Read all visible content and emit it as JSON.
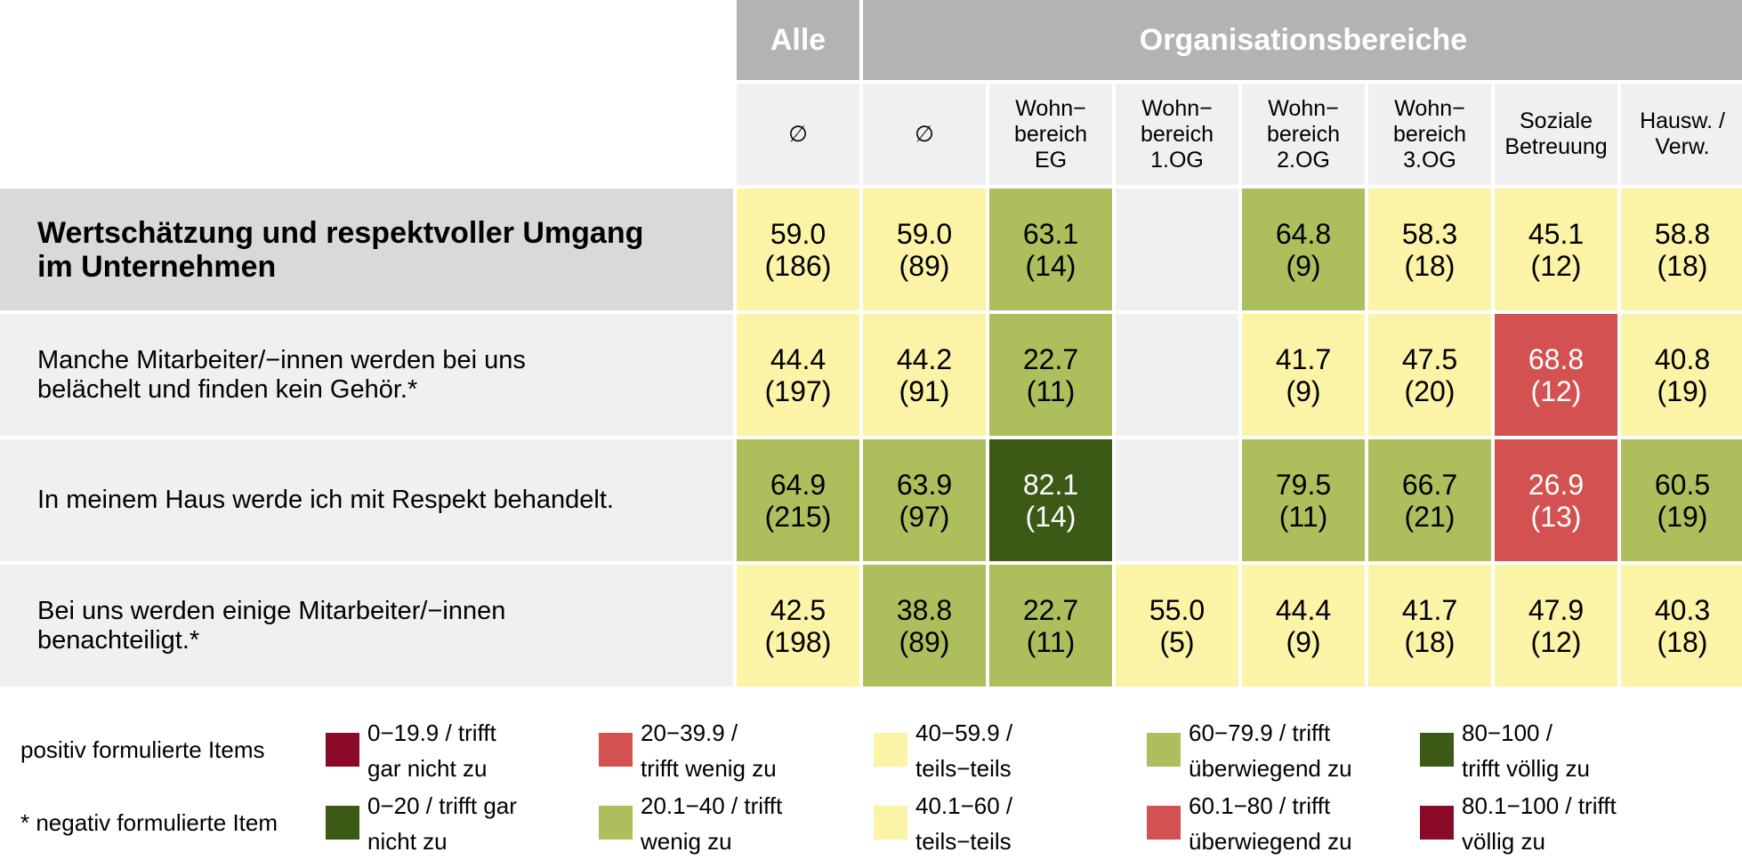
{
  "chart_data": {
    "type": "table",
    "header_groups": [
      {
        "label": "Alle",
        "span": 1
      },
      {
        "label": "Organisationsbereiche",
        "span": 7
      }
    ],
    "columns": [
      "∅",
      "∅",
      "Wohn−\nbereich\nEG",
      "Wohn−\nbereich\n1.OG",
      "Wohn−\nbereich\n2.OG",
      "Wohn−\nbereich\n3.OG",
      "Soziale\nBetreuung",
      "Hausw. /\nVerw."
    ],
    "rows": [
      {
        "label": "Wertschätzung und respektvoller Umgang\nim Unternehmen",
        "section": true,
        "negative": false,
        "values": [
          59.0,
          59.0,
          63.1,
          null,
          64.8,
          58.3,
          45.1,
          58.8
        ],
        "n": [
          186,
          89,
          14,
          null,
          9,
          18,
          12,
          18
        ]
      },
      {
        "label": "Manche Mitarbeiter/−innen werden bei uns\nbelächelt und finden kein Gehör.*",
        "section": false,
        "negative": true,
        "values": [
          44.4,
          44.2,
          22.7,
          null,
          41.7,
          47.5,
          68.8,
          40.8
        ],
        "n": [
          197,
          91,
          11,
          null,
          9,
          20,
          12,
          19
        ]
      },
      {
        "label": "In meinem Haus werde ich mit Respekt behandelt.",
        "section": false,
        "negative": false,
        "values": [
          64.9,
          63.9,
          82.1,
          null,
          79.5,
          66.7,
          26.9,
          60.5
        ],
        "n": [
          215,
          97,
          14,
          null,
          11,
          21,
          13,
          19
        ]
      },
      {
        "label": "Bei uns werden einige Mitarbeiter/−innen\nbenachteiligt.*",
        "section": false,
        "negative": true,
        "values": [
          42.5,
          38.8,
          22.7,
          55.0,
          44.4,
          41.7,
          47.9,
          40.3
        ],
        "n": [
          198,
          89,
          11,
          5,
          9,
          18,
          12,
          18
        ]
      }
    ],
    "legend": {
      "positive_label": "positiv formulierte Items",
      "negative_label": "* negativ formulierte Item",
      "positive": [
        {
          "label": "0−19.9 / trifft\ngar nicht zu",
          "color": "#8b0a27"
        },
        {
          "label": "20−39.9 /\ntrifft wenig zu",
          "color": "#d35151"
        },
        {
          "label": "40−59.9 /\nteils−teils",
          "color": "#fbf3a6"
        },
        {
          "label": "60−79.9 / trifft\nüberwiegend zu",
          "color": "#adbf5d"
        },
        {
          "label": "80−100 /\ntrifft völlig zu",
          "color": "#3c5a15"
        }
      ],
      "negative": [
        {
          "label": "0−20 / trifft gar\nnicht zu",
          "color": "#3c5a15"
        },
        {
          "label": "20.1−40 / trifft\nwenig zu",
          "color": "#adbf5d"
        },
        {
          "label": "40.1−60 /\nteils−teils",
          "color": "#fbf3a6"
        },
        {
          "label": "60.1−80 / trifft\nüberwiegend zu",
          "color": "#d35151"
        },
        {
          "label": "80.1−100 / trifft\nvöllig zu",
          "color": "#8b0a27"
        }
      ]
    }
  },
  "colors": {
    "header_bg": "#b3b3b3",
    "subheader_bg": "#f0f0f0",
    "section_bg": "#d9d9d9",
    "row_bg": "#f0f0f0",
    "empty_cell": "#f0f0f0"
  }
}
